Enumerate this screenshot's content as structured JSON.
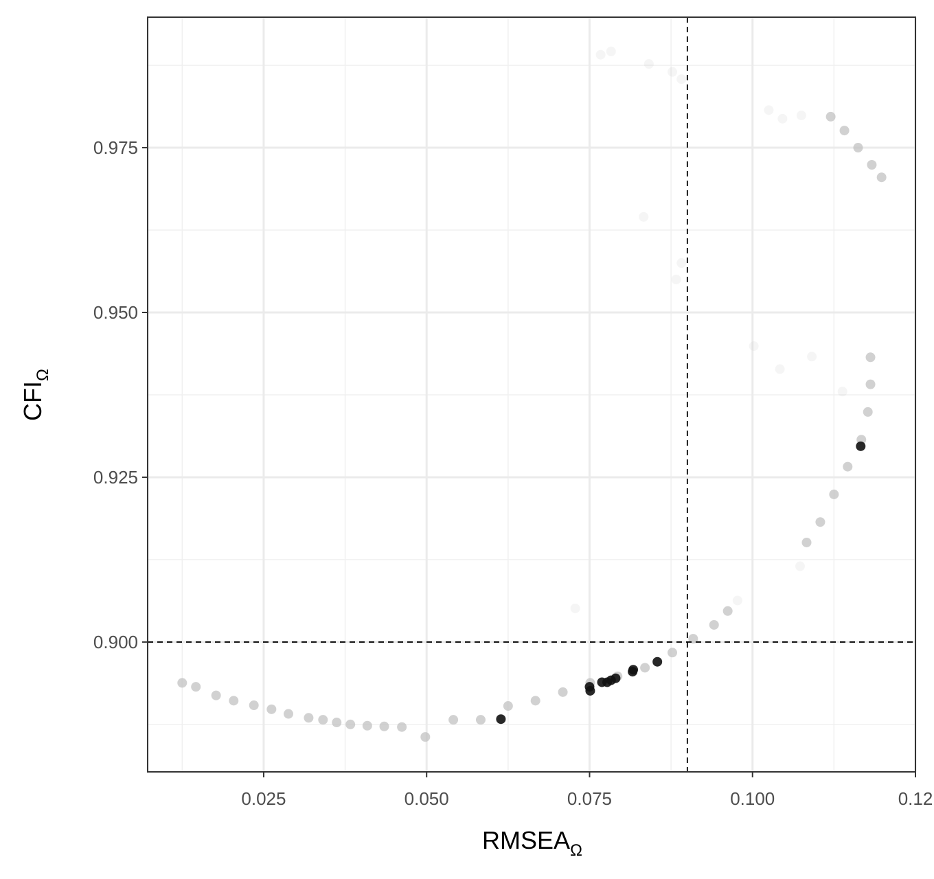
{
  "chart_data": {
    "type": "scatter",
    "xlabel": {
      "text": "RMSEA",
      "subscript": "Ω"
    },
    "ylabel": {
      "text": "CFI",
      "subscript": "Ω"
    },
    "xlim": [
      0.0072,
      0.125
    ],
    "ylim": [
      0.8803,
      0.9948
    ],
    "xticks": [
      0.025,
      0.05,
      0.075,
      0.1,
      {
        "value": 0.125,
        "label": "0.12"
      }
    ],
    "yticks": [
      0.9,
      0.925,
      0.95,
      0.975
    ],
    "xticks_labels": [
      "0.025",
      "0.050",
      "0.075",
      "0.100"
    ],
    "yticks_labels": [
      "0.900",
      "0.925",
      "0.950",
      "0.975"
    ],
    "xminor": [
      0.0125,
      0.0375,
      0.0625,
      0.0875,
      0.1125
    ],
    "yminor": [
      0.8875,
      0.9125,
      0.9375,
      0.9625,
      0.9875
    ],
    "grid": true,
    "hline": 0.9,
    "vline": 0.09,
    "series": [
      {
        "color": "#bebebe",
        "alpha": 0.15,
        "x": [
          0.0767,
          0.0783,
          0.0841,
          0.0877,
          0.0891,
          0.1025,
          0.1046,
          0.1075,
          0.0833,
          0.0883,
          0.0891,
          0.1002,
          0.1042,
          0.1091,
          0.1138,
          0.0728,
          0.1073,
          0.0977
        ],
        "values": [
          0.9891,
          0.9896,
          0.9877,
          0.9865,
          0.9854,
          0.9807,
          0.9794,
          0.9799,
          0.9645,
          0.955,
          0.9575,
          0.9449,
          0.9414,
          0.9433,
          0.938,
          0.9051,
          0.9115,
          0.9063
        ]
      },
      {
        "color": "#bebebe",
        "alpha": 0.7,
        "x": [
          0.0125,
          0.0146,
          0.0177,
          0.0204,
          0.0235,
          0.0262,
          0.0288,
          0.0319,
          0.0341,
          0.0362,
          0.0383,
          0.0409,
          0.0435,
          0.0462,
          0.0498,
          0.0541,
          0.0583,
          0.0625,
          0.0667,
          0.0709,
          0.0751,
          0.0793,
          0.0835,
          0.0877,
          0.0909,
          0.0941,
          0.0962,
          0.1083,
          0.1104,
          0.1125,
          0.1146,
          0.1167,
          0.1177,
          0.1181,
          0.1181,
          0.112,
          0.1141,
          0.1162,
          0.1183,
          0.1198
        ],
        "values": [
          0.8938,
          0.8932,
          0.8919,
          0.8911,
          0.8904,
          0.8898,
          0.8891,
          0.8885,
          0.8882,
          0.8878,
          0.8875,
          0.8873,
          0.8872,
          0.8871,
          0.8856,
          0.8882,
          0.8882,
          0.8903,
          0.8911,
          0.8924,
          0.8938,
          0.8948,
          0.8961,
          0.8984,
          0.9005,
          0.9026,
          0.9047,
          0.9151,
          0.9182,
          0.9224,
          0.9266,
          0.9307,
          0.9349,
          0.9391,
          0.9432,
          0.9797,
          0.9776,
          0.975,
          0.9724,
          0.9705
        ]
      },
      {
        "color": "#111111",
        "alpha": 0.9,
        "x": [
          0.0614,
          0.075,
          0.0751,
          0.0769,
          0.0777,
          0.0783,
          0.079,
          0.0816,
          0.0817,
          0.0854,
          0.1166
        ],
        "values": [
          0.8883,
          0.8932,
          0.8926,
          0.8939,
          0.8939,
          0.8942,
          0.8945,
          0.8955,
          0.8958,
          0.897,
          0.9297
        ]
      }
    ]
  }
}
